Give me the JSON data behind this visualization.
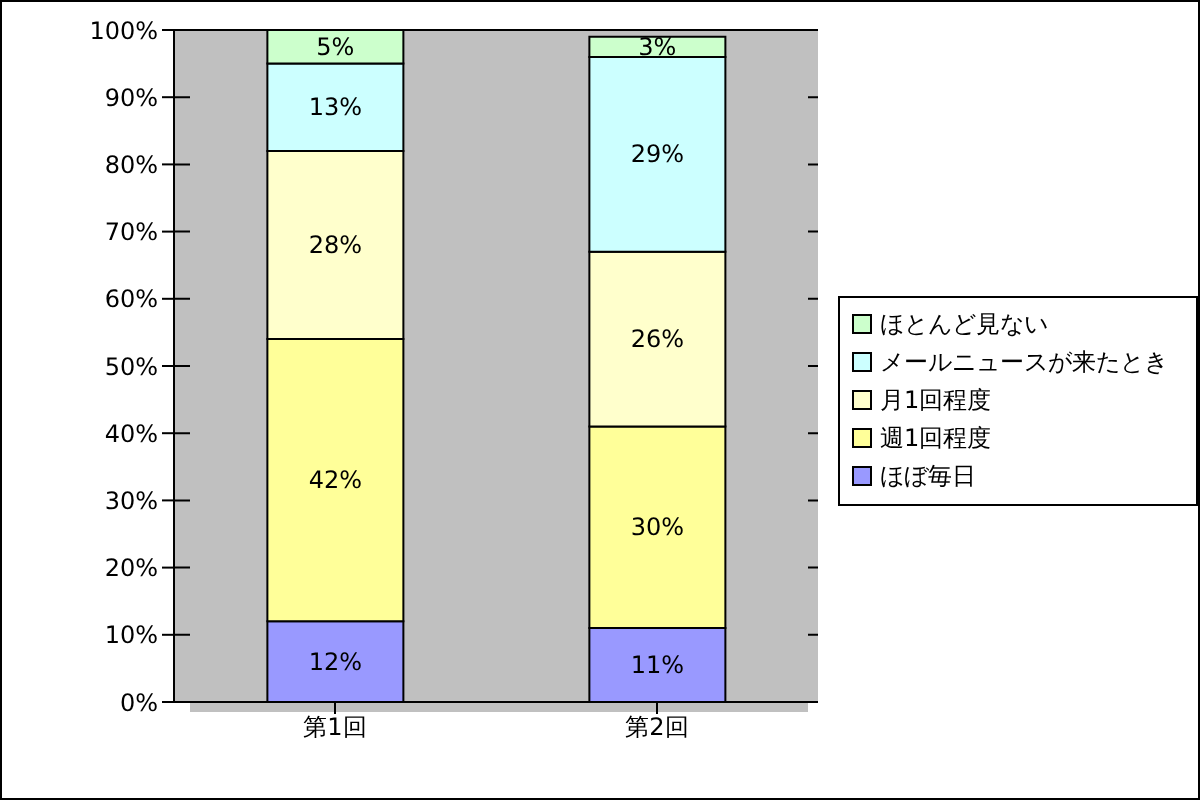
{
  "chart_data": {
    "type": "bar",
    "stacked": true,
    "categories": [
      "第1回",
      "第2回"
    ],
    "series": [
      {
        "name": "ほぼ毎日",
        "color": "#9999ff",
        "values": [
          12,
          11
        ],
        "value_labels": [
          "12%",
          "11%"
        ]
      },
      {
        "name": "週1回程度",
        "color": "#ffff99",
        "values": [
          42,
          30
        ],
        "value_labels": [
          "42%",
          "30%"
        ]
      },
      {
        "name": "月1回程度",
        "color": "#ffffcc",
        "values": [
          28,
          26
        ],
        "value_labels": [
          "28%",
          "26%"
        ]
      },
      {
        "name": "メールニュースが来たとき",
        "color": "#ccffff",
        "values": [
          13,
          29
        ],
        "value_labels": [
          "13%",
          "29%"
        ]
      },
      {
        "name": "ほとんど見ない",
        "color": "#ccffcc",
        "values": [
          5,
          3
        ],
        "value_labels": [
          "5%",
          "3%"
        ]
      }
    ],
    "ylim": [
      0,
      100
    ],
    "yticks": [
      {
        "value": 0,
        "label": "0%"
      },
      {
        "value": 10,
        "label": "10%"
      },
      {
        "value": 20,
        "label": "20%"
      },
      {
        "value": 30,
        "label": "30%"
      },
      {
        "value": 40,
        "label": "40%"
      },
      {
        "value": 50,
        "label": "50%"
      },
      {
        "value": 60,
        "label": "60%"
      },
      {
        "value": 70,
        "label": "70%"
      },
      {
        "value": 80,
        "label": "80%"
      },
      {
        "value": 90,
        "label": "90%"
      },
      {
        "value": 100,
        "label": "100%"
      }
    ],
    "grid": "y",
    "legend": "right"
  }
}
